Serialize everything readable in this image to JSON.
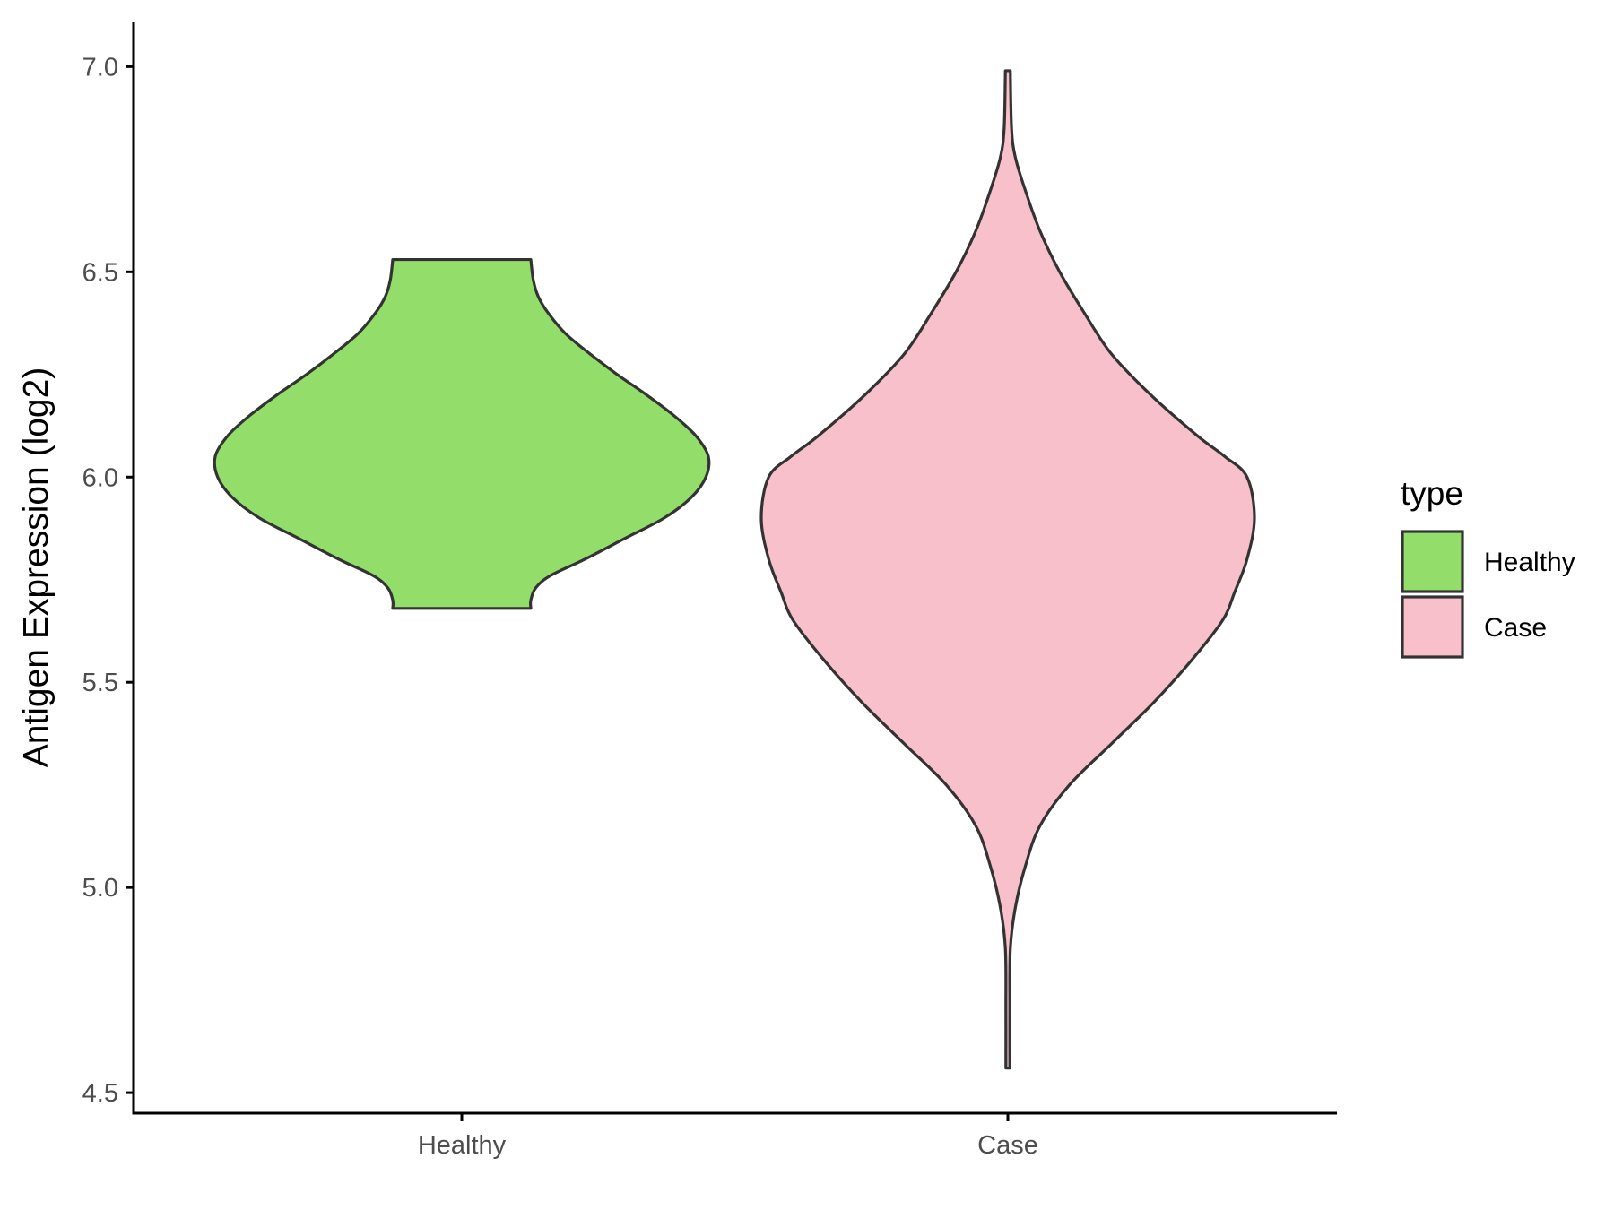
{
  "chart_data": {
    "type": "violin",
    "title": "",
    "xlabel": "",
    "ylabel": "Antigen Expression (log2)",
    "ylim": [
      4.45,
      7.11
    ],
    "yticks": [
      "4.5",
      "5.0",
      "5.5",
      "6.0",
      "6.5",
      "7.0"
    ],
    "categories": [
      "Healthy",
      "Case"
    ],
    "grid": false,
    "legend": {
      "title": "type",
      "position": "right",
      "items": [
        {
          "label": "Healthy",
          "color": "#93DD6A"
        },
        {
          "label": "Case",
          "color": "#F8C0CB"
        }
      ]
    },
    "series": [
      {
        "name": "Healthy",
        "color": "#93DD6A",
        "min": 5.68,
        "max": 6.53,
        "density_profile": [
          [
            5.68,
            0.28
          ],
          [
            5.7,
            0.28
          ],
          [
            5.73,
            0.3
          ],
          [
            5.76,
            0.36
          ],
          [
            5.8,
            0.5
          ],
          [
            5.85,
            0.66
          ],
          [
            5.9,
            0.82
          ],
          [
            5.95,
            0.93
          ],
          [
            6.0,
            0.99
          ],
          [
            6.05,
            1.0
          ],
          [
            6.1,
            0.95
          ],
          [
            6.15,
            0.86
          ],
          [
            6.2,
            0.75
          ],
          [
            6.25,
            0.63
          ],
          [
            6.3,
            0.52
          ],
          [
            6.35,
            0.42
          ],
          [
            6.4,
            0.35
          ],
          [
            6.44,
            0.31
          ],
          [
            6.48,
            0.29
          ],
          [
            6.53,
            0.28
          ]
        ]
      },
      {
        "name": "Case",
        "color": "#F8C0CB",
        "min": 4.56,
        "max": 6.99,
        "density_profile": [
          [
            4.56,
            0.008
          ],
          [
            4.7,
            0.008
          ],
          [
            4.85,
            0.01
          ],
          [
            4.95,
            0.03
          ],
          [
            5.05,
            0.07
          ],
          [
            5.15,
            0.13
          ],
          [
            5.25,
            0.25
          ],
          [
            5.35,
            0.42
          ],
          [
            5.45,
            0.59
          ],
          [
            5.55,
            0.74
          ],
          [
            5.65,
            0.87
          ],
          [
            5.72,
            0.92
          ],
          [
            5.8,
            0.97
          ],
          [
            5.9,
            1.0
          ],
          [
            6.0,
            0.97
          ],
          [
            6.05,
            0.88
          ],
          [
            6.1,
            0.77
          ],
          [
            6.2,
            0.58
          ],
          [
            6.3,
            0.42
          ],
          [
            6.4,
            0.31
          ],
          [
            6.5,
            0.21
          ],
          [
            6.6,
            0.13
          ],
          [
            6.7,
            0.07
          ],
          [
            6.78,
            0.03
          ],
          [
            6.85,
            0.015
          ],
          [
            6.99,
            0.01
          ]
        ]
      }
    ]
  }
}
